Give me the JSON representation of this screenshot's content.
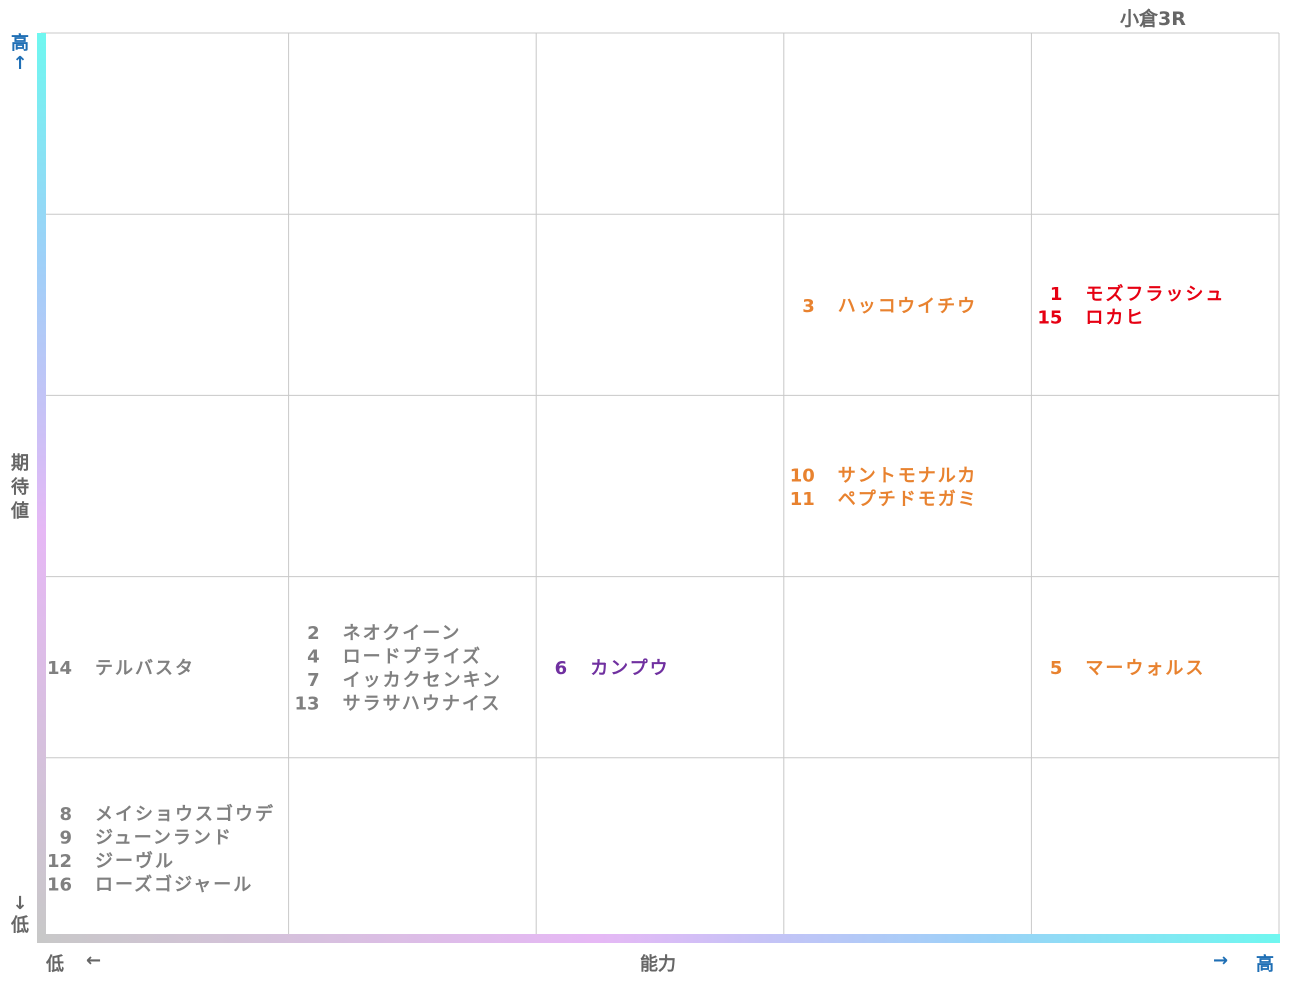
{
  "race_title": "小倉3R",
  "axes": {
    "y_title_chars": [
      "期",
      "待",
      "値"
    ],
    "y_high": "高",
    "y_high_arrow": "↑",
    "y_low": "低",
    "y_low_arrow": "↓",
    "x_title": "能力",
    "x_low": "低",
    "x_low_arrow": "←",
    "x_high": "高",
    "x_high_arrow": "→"
  },
  "colors": {
    "red": "#e60012",
    "orange": "#e8822f",
    "purple": "#7030a0",
    "gray": "#808080",
    "grid": "#c8c8c8"
  },
  "chart_data": {
    "type": "table",
    "title": "小倉3R",
    "xlabel": "能力",
    "ylabel": "期待値",
    "grid": {
      "columns": 5,
      "rows": 5
    },
    "cells": [
      {
        "col": 3,
        "row": 1,
        "color": "orange",
        "horses": [
          {
            "num": "3",
            "name": "ハッコウイチウ"
          }
        ]
      },
      {
        "col": 4,
        "row": 1,
        "color": "red",
        "horses": [
          {
            "num": "1",
            "name": "モズフラッシュ"
          },
          {
            "num": "15",
            "name": "ロカヒ"
          }
        ]
      },
      {
        "col": 3,
        "row": 2,
        "color": "orange",
        "horses": [
          {
            "num": "10",
            "name": "サントモナルカ"
          },
          {
            "num": "11",
            "name": "ペプチドモガミ"
          }
        ]
      },
      {
        "col": 0,
        "row": 3,
        "color": "gray",
        "horses": [
          {
            "num": "14",
            "name": "テルバスタ"
          }
        ]
      },
      {
        "col": 1,
        "row": 3,
        "color": "gray",
        "horses": [
          {
            "num": "2",
            "name": "ネオクイーン"
          },
          {
            "num": "4",
            "name": "ロードプライズ"
          },
          {
            "num": "7",
            "name": "イッカクセンキン"
          },
          {
            "num": "13",
            "name": "サラサハウナイス"
          }
        ]
      },
      {
        "col": 2,
        "row": 3,
        "color": "purple",
        "horses": [
          {
            "num": "6",
            "name": "カンプウ"
          }
        ]
      },
      {
        "col": 4,
        "row": 3,
        "color": "orange",
        "horses": [
          {
            "num": "5",
            "name": "マーウォルス"
          }
        ]
      },
      {
        "col": 0,
        "row": 4,
        "color": "gray",
        "horses": [
          {
            "num": "8",
            "name": "メイショウスゴウデ"
          },
          {
            "num": "9",
            "name": "ジューンランド"
          },
          {
            "num": "12",
            "name": "ジーヴル"
          },
          {
            "num": "16",
            "name": "ローズゴジャール"
          }
        ]
      }
    ]
  }
}
